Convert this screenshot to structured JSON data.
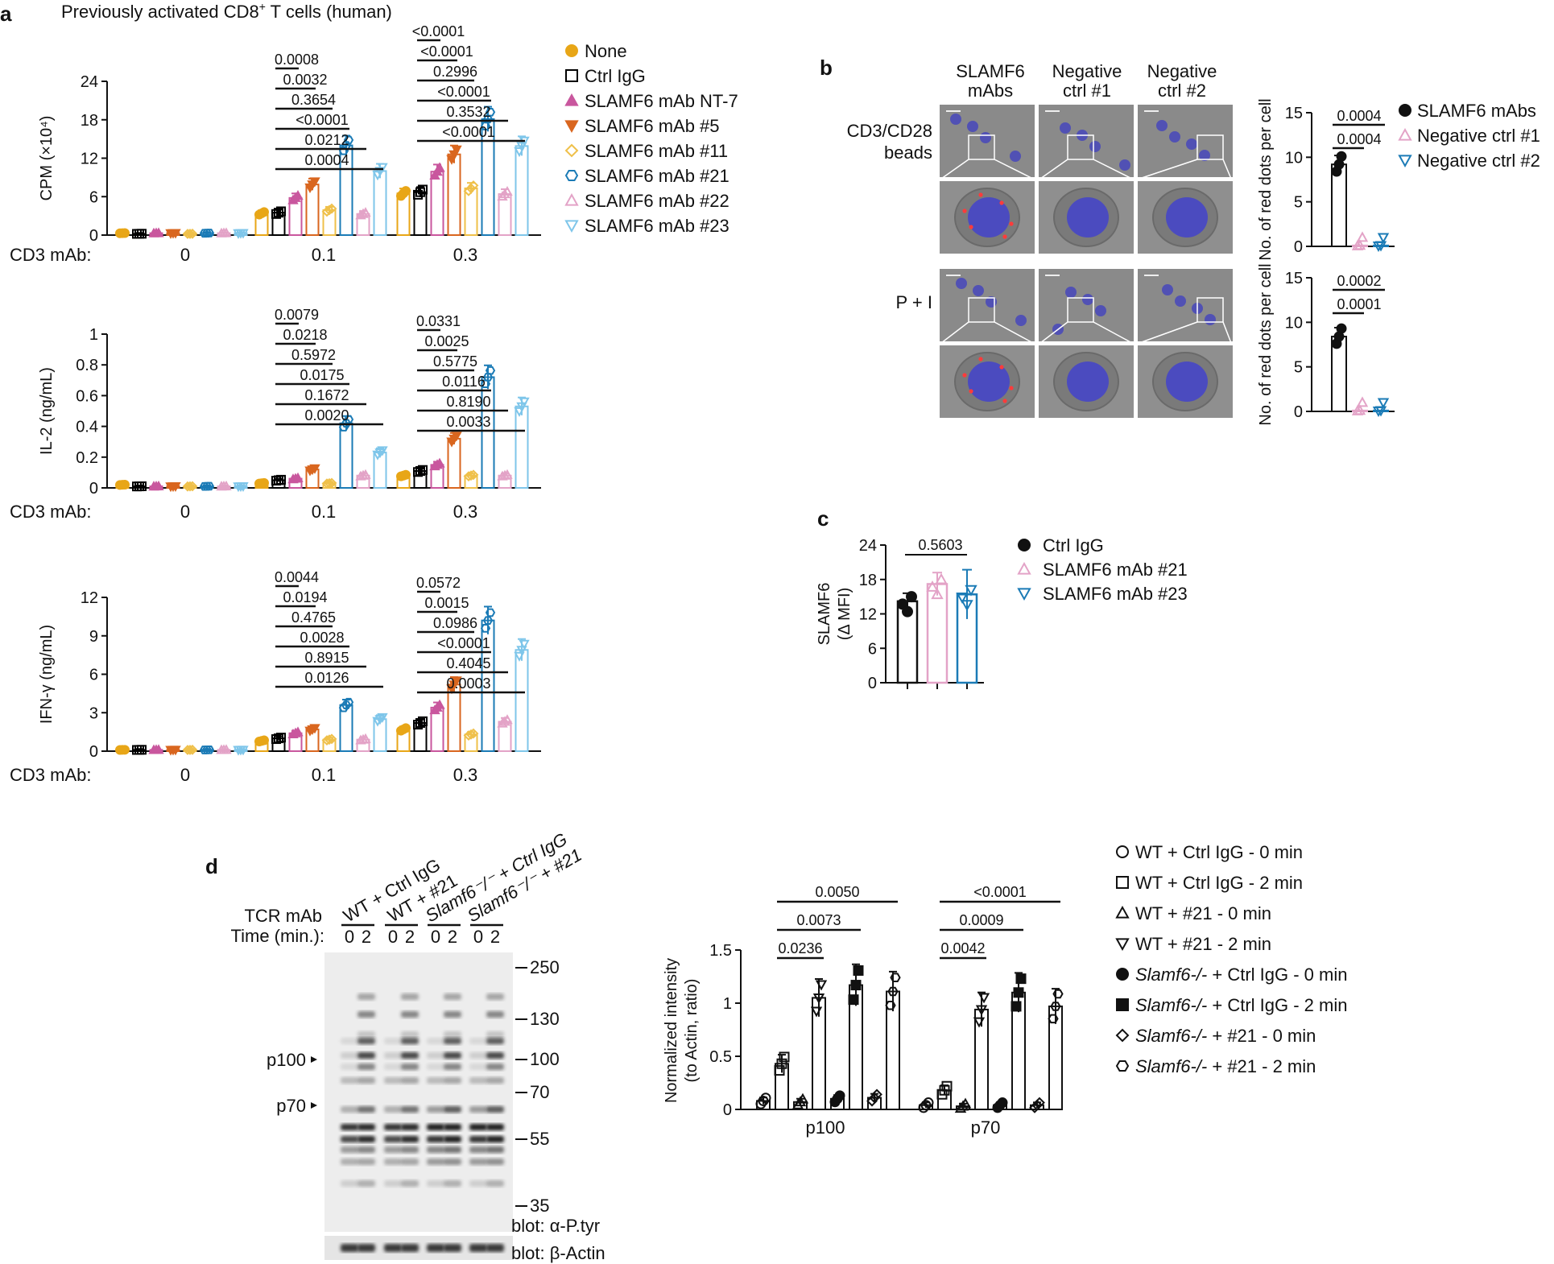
{
  "colors": {
    "none": "#e8a617",
    "ctrl": "#000000",
    "nt7": "#c9579e",
    "m5": "#d9661f",
    "m11": "#efc04a",
    "m21": "#1b7bb6",
    "m22": "#e3a3c7",
    "m23": "#7fc6ea"
  },
  "panel_a": {
    "label": "a",
    "title": "Previously activated  CD8",
    "title_sup": "+",
    "title_end": " T cells (human)",
    "cd3_label": "CD3 mAb:",
    "groups": [
      "0",
      "0.1",
      "0.3"
    ],
    "legend": [
      {
        "name": "None",
        "marker": "circle-filled",
        "color": "none"
      },
      {
        "name": "Ctrl IgG",
        "marker": "square-open",
        "color": "ctrl"
      },
      {
        "name": "SLAMF6 mAb NT-7",
        "marker": "triangle-filled",
        "color": "nt7"
      },
      {
        "name": "SLAMF6 mAb #5",
        "marker": "triangle-down-filled",
        "color": "m5"
      },
      {
        "name": "SLAMF6 mAb #11",
        "marker": "diamond-open",
        "color": "m11"
      },
      {
        "name": "SLAMF6 mAb #21",
        "marker": "hexagon-open",
        "color": "m21"
      },
      {
        "name": "SLAMF6 mAb #22",
        "marker": "triangle-open",
        "color": "m22"
      },
      {
        "name": "SLAMF6 mAb #23",
        "marker": "triangle-down-open",
        "color": "m23"
      }
    ]
  },
  "chart_data": [
    {
      "id": "a1",
      "type": "bar",
      "ylabel": "CPM (×10⁴)",
      "ylim": [
        0,
        24
      ],
      "yticks": [
        "0",
        "6",
        "12",
        "18",
        "24"
      ],
      "categories": [
        "0",
        "0.1",
        "0.3"
      ],
      "series": [
        {
          "name": "None",
          "values": [
            0.3,
            3.4,
            6.5
          ]
        },
        {
          "name": "Ctrl IgG",
          "values": [
            0.2,
            3.5,
            6.7
          ]
        },
        {
          "name": "SLAMF6 mAb NT-7",
          "values": [
            0.3,
            5.8,
            9.9
          ]
        },
        {
          "name": "SLAMF6 mAb #5",
          "values": [
            0.3,
            7.9,
            12.6
          ]
        },
        {
          "name": "SLAMF6 mAb #11",
          "values": [
            0.2,
            3.9,
            7.3
          ]
        },
        {
          "name": "SLAMF6 mAb #21",
          "values": [
            0.3,
            14.0,
            18.1
          ]
        },
        {
          "name": "SLAMF6 mAb #22",
          "values": [
            0.3,
            3.3,
            6.4
          ]
        },
        {
          "name": "SLAMF6 mAb #23",
          "values": [
            0.3,
            10.0,
            13.9
          ]
        }
      ],
      "annotations": [
        {
          "group": 1,
          "label": "0.0008"
        },
        {
          "group": 1,
          "label": "0.0032"
        },
        {
          "group": 1,
          "label": "0.3654"
        },
        {
          "group": 1,
          "label": "<0.0001"
        },
        {
          "group": 1,
          "label": "0.0212"
        },
        {
          "group": 1,
          "label": "0.0004"
        },
        {
          "group": 2,
          "label": "<0.0001"
        },
        {
          "group": 2,
          "label": "<0.0001"
        },
        {
          "group": 2,
          "label": "0.2996"
        },
        {
          "group": 2,
          "label": "<0.0001"
        },
        {
          "group": 2,
          "label": "0.3532"
        },
        {
          "group": 2,
          "label": "<0.0001"
        }
      ]
    },
    {
      "id": "a2",
      "type": "bar",
      "ylabel": "IL-2 (ng/mL)",
      "ylim": [
        0,
        1
      ],
      "yticks": [
        "0",
        "0.2",
        "0.4",
        "0.6",
        "0.8",
        "1"
      ],
      "categories": [
        "0",
        "0.1",
        "0.3"
      ],
      "series": [
        {
          "name": "None",
          "values": [
            0.02,
            0.03,
            0.08
          ]
        },
        {
          "name": "Ctrl IgG",
          "values": [
            0.01,
            0.05,
            0.11
          ]
        },
        {
          "name": "SLAMF6 mAb NT-7",
          "values": [
            0.01,
            0.06,
            0.15
          ]
        },
        {
          "name": "SLAMF6 mAb #5",
          "values": [
            0.01,
            0.12,
            0.32
          ]
        },
        {
          "name": "SLAMF6 mAb #11",
          "values": [
            0.01,
            0.03,
            0.08
          ]
        },
        {
          "name": "SLAMF6 mAb #21",
          "values": [
            0.01,
            0.42,
            0.72
          ]
        },
        {
          "name": "SLAMF6 mAb #22",
          "values": [
            0.01,
            0.08,
            0.08
          ]
        },
        {
          "name": "SLAMF6 mAb #23",
          "values": [
            0.01,
            0.23,
            0.53
          ]
        }
      ],
      "annotations": [
        {
          "group": 1,
          "label": "0.0079"
        },
        {
          "group": 1,
          "label": "0.0218"
        },
        {
          "group": 1,
          "label": "0.5972"
        },
        {
          "group": 1,
          "label": "0.0175"
        },
        {
          "group": 1,
          "label": "0.1672"
        },
        {
          "group": 1,
          "label": "0.0020"
        },
        {
          "group": 2,
          "label": "0.0331"
        },
        {
          "group": 2,
          "label": "0.0025"
        },
        {
          "group": 2,
          "label": "0.5775"
        },
        {
          "group": 2,
          "label": "0.0116"
        },
        {
          "group": 2,
          "label": "0.8190"
        },
        {
          "group": 2,
          "label": "0.0033"
        }
      ]
    },
    {
      "id": "a3",
      "type": "bar",
      "ylabel": "IFN-γ (ng/mL)",
      "ylim": [
        0,
        12
      ],
      "yticks": [
        "0",
        "3",
        "6",
        "9",
        "12"
      ],
      "categories": [
        "0",
        "0.1",
        "0.3"
      ],
      "series": [
        {
          "name": "None",
          "values": [
            0.1,
            0.8,
            1.7
          ]
        },
        {
          "name": "Ctrl IgG",
          "values": [
            0.1,
            1.0,
            2.2
          ]
        },
        {
          "name": "SLAMF6 mAb NT-7",
          "values": [
            0.1,
            1.4,
            3.4
          ]
        },
        {
          "name": "SLAMF6 mAb #5",
          "values": [
            0.1,
            1.7,
            5.2
          ]
        },
        {
          "name": "SLAMF6 mAb #11",
          "values": [
            0.1,
            0.9,
            1.3
          ]
        },
        {
          "name": "SLAMF6 mAb #21",
          "values": [
            0.1,
            3.6,
            10.2
          ]
        },
        {
          "name": "SLAMF6 mAb #22",
          "values": [
            0.1,
            0.9,
            2.3
          ]
        },
        {
          "name": "SLAMF6 mAb #23",
          "values": [
            0.1,
            2.5,
            7.9
          ]
        }
      ],
      "annotations": [
        {
          "group": 1,
          "label": "0.0044"
        },
        {
          "group": 1,
          "label": "0.0194"
        },
        {
          "group": 1,
          "label": "0.4765"
        },
        {
          "group": 1,
          "label": "0.0028"
        },
        {
          "group": 1,
          "label": "0.8915"
        },
        {
          "group": 1,
          "label": "0.0126"
        },
        {
          "group": 2,
          "label": "0.0572"
        },
        {
          "group": 2,
          "label": "0.0015"
        },
        {
          "group": 2,
          "label": "0.0986"
        },
        {
          "group": 2,
          "label": "<0.0001"
        },
        {
          "group": 2,
          "label": "0.4045"
        },
        {
          "group": 2,
          "label": "0.0003"
        }
      ]
    },
    {
      "id": "b1",
      "type": "bar",
      "ylabel": "No. of red dots per cell",
      "ylim": [
        0,
        15
      ],
      "yticks": [
        "0",
        "5",
        "10",
        "15"
      ],
      "categories": [
        "SLAMF6 mAbs",
        "Negative ctrl #1",
        "Negative ctrl #2"
      ],
      "values": [
        9.2,
        0.1,
        0.1
      ],
      "annotations": [
        "0.0004",
        "0.0004"
      ]
    },
    {
      "id": "b2",
      "type": "bar",
      "ylabel": "No. of red dots per cell",
      "ylim": [
        0,
        15
      ],
      "yticks": [
        "0",
        "5",
        "10",
        "15"
      ],
      "categories": [
        "SLAMF6 mAbs",
        "Negative ctrl #1",
        "Negative ctrl #2"
      ],
      "values": [
        8.4,
        0.1,
        0.1
      ],
      "annotations": [
        "0.0002",
        "0.0001"
      ]
    },
    {
      "id": "c",
      "type": "bar",
      "ylabel": "SLAMF6 (Δ MFI)",
      "ylim": [
        0,
        24
      ],
      "yticks": [
        "0",
        "6",
        "12",
        "18",
        "24"
      ],
      "categories": [
        "Ctrl IgG",
        "SLAMF6 mAb #21",
        "SLAMF6 mAb #23"
      ],
      "values": [
        14.2,
        17.2,
        15.4
      ],
      "annotations": [
        "0.5603"
      ]
    },
    {
      "id": "d",
      "type": "bar",
      "ylabel": "Normalized intensity (to Actin, ratio)",
      "ylim": [
        0,
        1.5
      ],
      "yticks": [
        "0",
        "0.5",
        "1",
        "1.5"
      ],
      "categories": [
        "p100",
        "p70"
      ],
      "series": [
        {
          "name": "WT + Ctrl IgG - 0 min",
          "values": [
            0.08,
            0.04
          ]
        },
        {
          "name": "WT + Ctrl IgG - 2 min",
          "values": [
            0.43,
            0.18
          ]
        },
        {
          "name": "WT + #21 - 0 min",
          "values": [
            0.07,
            0.03
          ]
        },
        {
          "name": "WT + #21 - 2 min",
          "values": [
            1.05,
            0.94
          ]
        },
        {
          "name": "Slamf6-/- + Ctrl IgG - 0 min",
          "values": [
            0.1,
            0.04
          ]
        },
        {
          "name": "Slamf6-/- + Ctrl IgG - 2 min",
          "values": [
            1.17,
            1.1
          ]
        },
        {
          "name": "Slamf6-/- + #21 - 0 min",
          "values": [
            0.11,
            0.04
          ]
        },
        {
          "name": "Slamf6-/- + #21 - 2 min",
          "values": [
            1.11,
            0.97
          ]
        }
      ],
      "annotations": [
        {
          "group": 0,
          "label": "0.0236"
        },
        {
          "group": 0,
          "label": "0.0073"
        },
        {
          "group": 0,
          "label": "0.0050"
        },
        {
          "group": 1,
          "label": "0.0042"
        },
        {
          "group": 1,
          "label": "0.0009"
        },
        {
          "group": 1,
          "label": "<0.0001"
        }
      ]
    }
  ],
  "panel_b": {
    "label": "b",
    "columns": [
      "SLAMF6",
      "mAbs",
      "Negative",
      "ctrl #1",
      "Negative",
      "ctrl #2"
    ],
    "rows": [
      "CD3/CD28",
      "beads",
      "P + I"
    ],
    "legend": [
      {
        "name": "SLAMF6 mAbs",
        "marker": "circle-filled",
        "color": "#111111"
      },
      {
        "name": "Negative ctrl #1",
        "marker": "triangle-open",
        "color": "#e3a3c7"
      },
      {
        "name": "Negative ctrl #2",
        "marker": "triangle-down-open",
        "color": "#1b7bb6"
      }
    ]
  },
  "panel_c": {
    "label": "c",
    "legend": [
      {
        "name": "Ctrl IgG",
        "marker": "circle-filled",
        "color": "#111111"
      },
      {
        "name": "SLAMF6 mAb #21",
        "marker": "triangle-open",
        "color": "#e3a3c7"
      },
      {
        "name": "SLAMF6 mAb #23",
        "marker": "triangle-down-open",
        "color": "#1b7bb6"
      }
    ]
  },
  "panel_d": {
    "label": "d",
    "lanes": [
      "WT + Ctrl IgG",
      "WT + #21",
      "Slamf6⁻/⁻ + Ctrl IgG",
      "Slamf6⁻/⁻ + #21"
    ],
    "tcr_label": "TCR mAb",
    "time_label": "Time (min.):",
    "times": [
      "0",
      "2"
    ],
    "markers": [
      "250",
      "130",
      "100",
      "70",
      "55",
      "35"
    ],
    "band_labels": [
      "p100",
      "p70"
    ],
    "blot1": "blot: α-P.tyr",
    "blot2": "blot: β-Actin",
    "legend": [
      {
        "prefix": "WT",
        "rest": " + Ctrl IgG - 0 min",
        "marker": "circle-open"
      },
      {
        "prefix": "WT",
        "rest": " + Ctrl IgG - 2 min",
        "marker": "square-open"
      },
      {
        "prefix": "WT",
        "rest": " + #21 - 0 min",
        "marker": "triangle-open"
      },
      {
        "prefix": "WT",
        "rest": " + #21 - 2 min",
        "marker": "triangle-down-open"
      },
      {
        "prefix": "Slamf6-/-",
        "rest": " + Ctrl IgG - 0 min",
        "marker": "circle-filled"
      },
      {
        "prefix": "Slamf6-/-",
        "rest": " + Ctrl IgG - 2 min",
        "marker": "square-filled"
      },
      {
        "prefix": "Slamf6-/-",
        "rest": " + #21 - 0 min",
        "marker": "diamond-open"
      },
      {
        "prefix": "Slamf6-/-",
        "rest": " + #21 - 2 min",
        "marker": "hexagon-open"
      }
    ]
  }
}
